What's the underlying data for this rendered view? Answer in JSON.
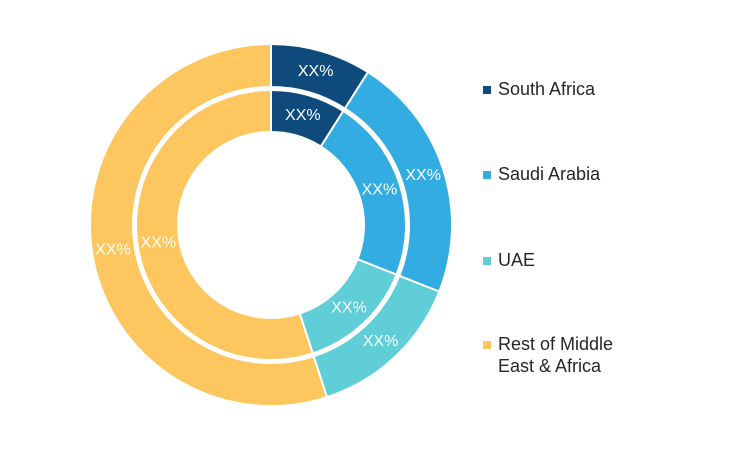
{
  "chart_data": {
    "type": "pie",
    "style": "double-donut",
    "categories": [
      "South Africa",
      "Saudi Arabia",
      "UAE",
      "Rest of Middle East & Africa"
    ],
    "colors": [
      "#0e4a7b",
      "#33ace2",
      "#60ced6",
      "#fdc65e"
    ],
    "series": [
      {
        "ring": "outer",
        "values": [
          9,
          22,
          14,
          55
        ],
        "labels": [
          "XX%",
          "XX%",
          "XX%",
          "XX%"
        ]
      },
      {
        "ring": "inner",
        "values": [
          9,
          22,
          14,
          55
        ],
        "labels": [
          "XX%",
          "XX%",
          "XX%",
          "XX%"
        ]
      }
    ],
    "legend_position": "right"
  },
  "legend": {
    "items": [
      {
        "label": "South Africa",
        "color": "#0e4a7b"
      },
      {
        "label": "Saudi Arabia",
        "color": "#33ace2"
      },
      {
        "label": "UAE",
        "color": "#60ced6"
      },
      {
        "label": "Rest of Middle\nEast & Africa",
        "color": "#fdc65e"
      }
    ]
  }
}
